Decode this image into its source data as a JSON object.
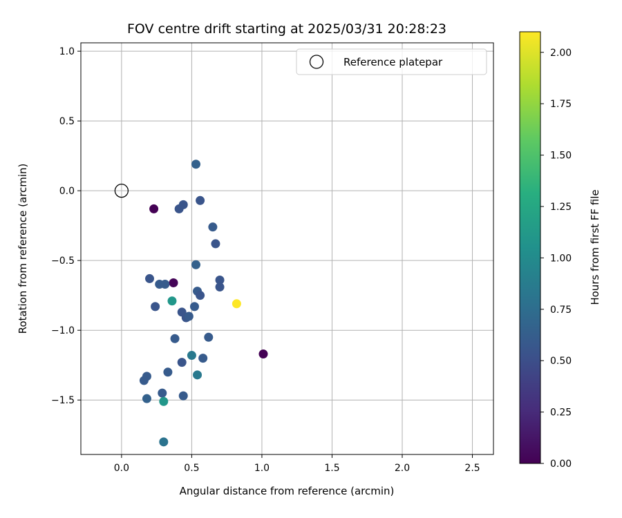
{
  "chart_data": {
    "type": "scatter",
    "title": "FOV centre drift starting at 2025/03/31 20:28:23",
    "xlabel": "Angular distance from reference (arcmin)",
    "ylabel": "Rotation from reference (arcmin)",
    "xlim": [
      -0.29,
      2.65
    ],
    "ylim": [
      -1.89,
      1.06
    ],
    "xticks": [
      0.0,
      0.5,
      1.0,
      1.5,
      2.0,
      2.5
    ],
    "xtick_labels": [
      "0.0",
      "0.5",
      "1.0",
      "1.5",
      "2.0",
      "2.5"
    ],
    "yticks": [
      -1.5,
      -1.0,
      -0.5,
      0.0,
      0.5,
      1.0
    ],
    "ytick_labels": [
      "−1.5",
      "−1.0",
      "−0.5",
      "0.0",
      "0.5",
      "1.0"
    ],
    "grid": true,
    "legend": {
      "position": "top-right",
      "entries": [
        {
          "label": "Reference platepar",
          "marker": "open-circle"
        }
      ]
    },
    "reference_point": {
      "x": 0.0,
      "y": 0.0
    },
    "colorbar": {
      "label": "Hours from first FF file",
      "colormap": "viridis",
      "range": [
        0.0,
        2.1
      ],
      "ticks": [
        0.0,
        0.25,
        0.5,
        0.75,
        1.0,
        1.25,
        1.5,
        1.75,
        2.0
      ],
      "tick_labels": [
        "0.00",
        "0.25",
        "0.50",
        "0.75",
        "1.00",
        "1.25",
        "1.50",
        "1.75",
        "2.00"
      ]
    },
    "points": [
      {
        "x": 0.23,
        "y": -0.13,
        "c": 0.0
      },
      {
        "x": 0.37,
        "y": -0.66,
        "c": 0.02
      },
      {
        "x": 1.01,
        "y": -1.17,
        "c": 0.0
      },
      {
        "x": 0.41,
        "y": -0.13,
        "c": 0.55
      },
      {
        "x": 0.44,
        "y": -0.1,
        "c": 0.55
      },
      {
        "x": 0.53,
        "y": 0.19,
        "c": 0.65
      },
      {
        "x": 0.56,
        "y": -0.07,
        "c": 0.55
      },
      {
        "x": 0.65,
        "y": -0.26,
        "c": 0.6
      },
      {
        "x": 0.67,
        "y": -0.38,
        "c": 0.55
      },
      {
        "x": 0.53,
        "y": -0.53,
        "c": 0.65
      },
      {
        "x": 0.2,
        "y": -0.63,
        "c": 0.55
      },
      {
        "x": 0.27,
        "y": -0.67,
        "c": 0.6
      },
      {
        "x": 0.31,
        "y": -0.67,
        "c": 0.6
      },
      {
        "x": 0.54,
        "y": -0.72,
        "c": 0.6
      },
      {
        "x": 0.56,
        "y": -0.75,
        "c": 0.55
      },
      {
        "x": 0.7,
        "y": -0.64,
        "c": 0.55
      },
      {
        "x": 0.7,
        "y": -0.69,
        "c": 0.55
      },
      {
        "x": 0.24,
        "y": -0.83,
        "c": 0.55
      },
      {
        "x": 0.36,
        "y": -0.79,
        "c": 1.1
      },
      {
        "x": 0.52,
        "y": -0.83,
        "c": 0.6
      },
      {
        "x": 0.43,
        "y": -0.87,
        "c": 0.55
      },
      {
        "x": 0.46,
        "y": -0.91,
        "c": 0.55
      },
      {
        "x": 0.48,
        "y": -0.9,
        "c": 0.6
      },
      {
        "x": 0.82,
        "y": -0.81,
        "c": 2.1
      },
      {
        "x": 0.38,
        "y": -1.06,
        "c": 0.6
      },
      {
        "x": 0.62,
        "y": -1.05,
        "c": 0.6
      },
      {
        "x": 0.5,
        "y": -1.18,
        "c": 0.85
      },
      {
        "x": 0.58,
        "y": -1.2,
        "c": 0.6
      },
      {
        "x": 0.43,
        "y": -1.23,
        "c": 0.55
      },
      {
        "x": 0.33,
        "y": -1.3,
        "c": 0.6
      },
      {
        "x": 0.54,
        "y": -1.32,
        "c": 0.85
      },
      {
        "x": 0.18,
        "y": -1.33,
        "c": 0.6
      },
      {
        "x": 0.16,
        "y": -1.36,
        "c": 0.6
      },
      {
        "x": 0.29,
        "y": -1.45,
        "c": 0.6
      },
      {
        "x": 0.44,
        "y": -1.47,
        "c": 0.6
      },
      {
        "x": 0.18,
        "y": -1.49,
        "c": 0.65
      },
      {
        "x": 0.3,
        "y": -1.51,
        "c": 1.1
      },
      {
        "x": 0.3,
        "y": -1.8,
        "c": 0.8
      }
    ]
  }
}
